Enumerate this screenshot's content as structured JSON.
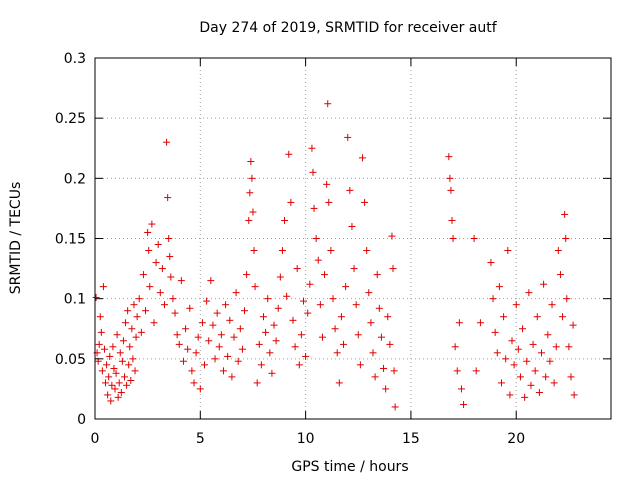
{
  "chart_data": {
    "type": "scatter",
    "title": "Day 274 of 2019, SRMTID for receiver autf",
    "xlabel": "GPS time / hours",
    "ylabel": "SRMTID / TECUs",
    "xlim": [
      0,
      24.5
    ],
    "ylim": [
      0,
      0.3
    ],
    "xticks": [
      0,
      5,
      10,
      15,
      20
    ],
    "xtick_labels": [
      "0",
      "5",
      "10",
      "15",
      "20"
    ],
    "yticks": [
      0,
      0.05,
      0.1,
      0.15,
      0.2,
      0.25,
      0.3
    ],
    "ytick_labels": [
      "0",
      "0.05",
      "0.1",
      "0.15",
      "0.2",
      "0.25",
      "0.3"
    ],
    "grid": true,
    "marker": "plus",
    "color": "#e00000",
    "series": [
      {
        "name": "SRMTID",
        "points": [
          [
            0.05,
            0.101
          ],
          [
            0.1,
            0.055
          ],
          [
            0.15,
            0.048
          ],
          [
            0.2,
            0.062
          ],
          [
            0.25,
            0.085
          ],
          [
            0.3,
            0.072
          ],
          [
            0.35,
            0.04
          ],
          [
            0.4,
            0.11
          ],
          [
            0.45,
            0.058
          ],
          [
            0.5,
            0.03
          ],
          [
            0.55,
            0.045
          ],
          [
            0.6,
            0.02
          ],
          [
            0.65,
            0.035
          ],
          [
            0.7,
            0.052
          ],
          [
            0.75,
            0.015
          ],
          [
            0.8,
            0.028
          ],
          [
            0.85,
            0.06
          ],
          [
            0.9,
            0.042
          ],
          [
            0.95,
            0.025
          ],
          [
            1.0,
            0.038
          ],
          [
            1.05,
            0.07
          ],
          [
            1.1,
            0.018
          ],
          [
            1.15,
            0.03
          ],
          [
            1.2,
            0.055
          ],
          [
            1.25,
            0.022
          ],
          [
            1.3,
            0.048
          ],
          [
            1.35,
            0.065
          ],
          [
            1.4,
            0.035
          ],
          [
            1.45,
            0.08
          ],
          [
            1.5,
            0.028
          ],
          [
            1.55,
            0.09
          ],
          [
            1.6,
            0.045
          ],
          [
            1.65,
            0.06
          ],
          [
            1.7,
            0.032
          ],
          [
            1.75,
            0.075
          ],
          [
            1.8,
            0.05
          ],
          [
            1.85,
            0.095
          ],
          [
            1.9,
            0.04
          ],
          [
            1.95,
            0.068
          ],
          [
            2.0,
            0.085
          ],
          [
            2.1,
            0.1
          ],
          [
            2.2,
            0.072
          ],
          [
            2.3,
            0.12
          ],
          [
            2.4,
            0.09
          ],
          [
            2.5,
            0.155
          ],
          [
            2.55,
            0.14
          ],
          [
            2.6,
            0.11
          ],
          [
            2.7,
            0.162
          ],
          [
            2.8,
            0.08
          ],
          [
            2.9,
            0.13
          ],
          [
            3.0,
            0.145
          ],
          [
            3.1,
            0.105
          ],
          [
            3.2,
            0.125
          ],
          [
            3.3,
            0.095
          ],
          [
            3.4,
            0.23
          ],
          [
            3.45,
            0.184
          ],
          [
            3.5,
            0.15
          ],
          [
            3.55,
            0.135
          ],
          [
            3.6,
            0.118
          ],
          [
            3.7,
            0.1
          ],
          [
            3.8,
            0.088
          ],
          [
            3.9,
            0.07
          ],
          [
            4.0,
            0.062
          ],
          [
            4.1,
            0.115
          ],
          [
            4.2,
            0.048
          ],
          [
            4.3,
            0.075
          ],
          [
            4.4,
            0.058
          ],
          [
            4.5,
            0.092
          ],
          [
            4.6,
            0.04
          ],
          [
            4.7,
            0.03
          ],
          [
            4.8,
            0.055
          ],
          [
            4.9,
            0.068
          ],
          [
            5.0,
            0.025
          ],
          [
            5.1,
            0.08
          ],
          [
            5.2,
            0.045
          ],
          [
            5.3,
            0.098
          ],
          [
            5.4,
            0.065
          ],
          [
            5.5,
            0.115
          ],
          [
            5.6,
            0.078
          ],
          [
            5.7,
            0.05
          ],
          [
            5.8,
            0.088
          ],
          [
            5.9,
            0.06
          ],
          [
            6.0,
            0.07
          ],
          [
            6.1,
            0.04
          ],
          [
            6.2,
            0.095
          ],
          [
            6.3,
            0.052
          ],
          [
            6.4,
            0.082
          ],
          [
            6.5,
            0.035
          ],
          [
            6.6,
            0.068
          ],
          [
            6.7,
            0.105
          ],
          [
            6.8,
            0.048
          ],
          [
            6.9,
            0.075
          ],
          [
            7.0,
            0.058
          ],
          [
            7.1,
            0.09
          ],
          [
            7.2,
            0.12
          ],
          [
            7.3,
            0.165
          ],
          [
            7.35,
            0.188
          ],
          [
            7.4,
            0.214
          ],
          [
            7.45,
            0.2
          ],
          [
            7.5,
            0.172
          ],
          [
            7.55,
            0.14
          ],
          [
            7.6,
            0.11
          ],
          [
            7.7,
            0.03
          ],
          [
            7.8,
            0.062
          ],
          [
            7.9,
            0.045
          ],
          [
            8.0,
            0.085
          ],
          [
            8.1,
            0.072
          ],
          [
            8.2,
            0.1
          ],
          [
            8.3,
            0.055
          ],
          [
            8.4,
            0.038
          ],
          [
            8.5,
            0.078
          ],
          [
            8.6,
            0.065
          ],
          [
            8.7,
            0.092
          ],
          [
            8.8,
            0.118
          ],
          [
            8.9,
            0.14
          ],
          [
            9.0,
            0.165
          ],
          [
            9.1,
            0.102
          ],
          [
            9.2,
            0.22
          ],
          [
            9.3,
            0.18
          ],
          [
            9.4,
            0.082
          ],
          [
            9.5,
            0.06
          ],
          [
            9.6,
            0.125
          ],
          [
            9.7,
            0.045
          ],
          [
            9.8,
            0.07
          ],
          [
            9.9,
            0.098
          ],
          [
            10.0,
            0.052
          ],
          [
            10.1,
            0.088
          ],
          [
            10.2,
            0.112
          ],
          [
            10.3,
            0.225
          ],
          [
            10.35,
            0.205
          ],
          [
            10.4,
            0.175
          ],
          [
            10.5,
            0.15
          ],
          [
            10.6,
            0.132
          ],
          [
            10.7,
            0.095
          ],
          [
            10.8,
            0.068
          ],
          [
            10.9,
            0.12
          ],
          [
            11.0,
            0.195
          ],
          [
            11.05,
            0.262
          ],
          [
            11.1,
            0.18
          ],
          [
            11.2,
            0.14
          ],
          [
            11.3,
            0.1
          ],
          [
            11.4,
            0.075
          ],
          [
            11.5,
            0.055
          ],
          [
            11.6,
            0.03
          ],
          [
            11.7,
            0.085
          ],
          [
            11.8,
            0.062
          ],
          [
            11.9,
            0.11
          ],
          [
            12.0,
            0.234
          ],
          [
            12.1,
            0.19
          ],
          [
            12.2,
            0.16
          ],
          [
            12.3,
            0.125
          ],
          [
            12.4,
            0.095
          ],
          [
            12.5,
            0.07
          ],
          [
            12.6,
            0.045
          ],
          [
            12.7,
            0.217
          ],
          [
            12.8,
            0.18
          ],
          [
            12.9,
            0.14
          ],
          [
            13.0,
            0.105
          ],
          [
            13.1,
            0.08
          ],
          [
            13.2,
            0.055
          ],
          [
            13.3,
            0.035
          ],
          [
            13.4,
            0.12
          ],
          [
            13.5,
            0.092
          ],
          [
            13.6,
            0.068
          ],
          [
            13.7,
            0.042
          ],
          [
            13.8,
            0.025
          ],
          [
            13.9,
            0.085
          ],
          [
            14.0,
            0.062
          ],
          [
            14.1,
            0.152
          ],
          [
            14.15,
            0.125
          ],
          [
            14.2,
            0.04
          ],
          [
            14.25,
            0.01
          ],
          [
            16.8,
            0.218
          ],
          [
            16.85,
            0.2
          ],
          [
            16.9,
            0.19
          ],
          [
            16.95,
            0.165
          ],
          [
            17.0,
            0.15
          ],
          [
            17.1,
            0.06
          ],
          [
            17.2,
            0.04
          ],
          [
            17.3,
            0.08
          ],
          [
            17.4,
            0.025
          ],
          [
            17.5,
            0.012
          ],
          [
            18.0,
            0.15
          ],
          [
            18.1,
            0.04
          ],
          [
            18.3,
            0.08
          ],
          [
            18.8,
            0.13
          ],
          [
            18.9,
            0.1
          ],
          [
            19.0,
            0.072
          ],
          [
            19.1,
            0.055
          ],
          [
            19.2,
            0.11
          ],
          [
            19.3,
            0.03
          ],
          [
            19.4,
            0.085
          ],
          [
            19.5,
            0.05
          ],
          [
            19.6,
            0.14
          ],
          [
            19.7,
            0.02
          ],
          [
            19.8,
            0.065
          ],
          [
            19.9,
            0.045
          ],
          [
            20.0,
            0.095
          ],
          [
            20.1,
            0.058
          ],
          [
            20.2,
            0.035
          ],
          [
            20.3,
            0.075
          ],
          [
            20.4,
            0.018
          ],
          [
            20.5,
            0.048
          ],
          [
            20.6,
            0.105
          ],
          [
            20.7,
            0.028
          ],
          [
            20.8,
            0.062
          ],
          [
            20.9,
            0.04
          ],
          [
            21.0,
            0.085
          ],
          [
            21.1,
            0.022
          ],
          [
            21.2,
            0.055
          ],
          [
            21.3,
            0.112
          ],
          [
            21.4,
            0.035
          ],
          [
            21.5,
            0.07
          ],
          [
            21.6,
            0.048
          ],
          [
            21.7,
            0.095
          ],
          [
            21.8,
            0.03
          ],
          [
            21.9,
            0.06
          ],
          [
            22.0,
            0.14
          ],
          [
            22.1,
            0.12
          ],
          [
            22.2,
            0.085
          ],
          [
            22.3,
            0.17
          ],
          [
            22.35,
            0.15
          ],
          [
            22.4,
            0.1
          ],
          [
            22.5,
            0.06
          ],
          [
            22.6,
            0.035
          ],
          [
            22.7,
            0.078
          ],
          [
            22.75,
            0.02
          ]
        ]
      }
    ]
  }
}
